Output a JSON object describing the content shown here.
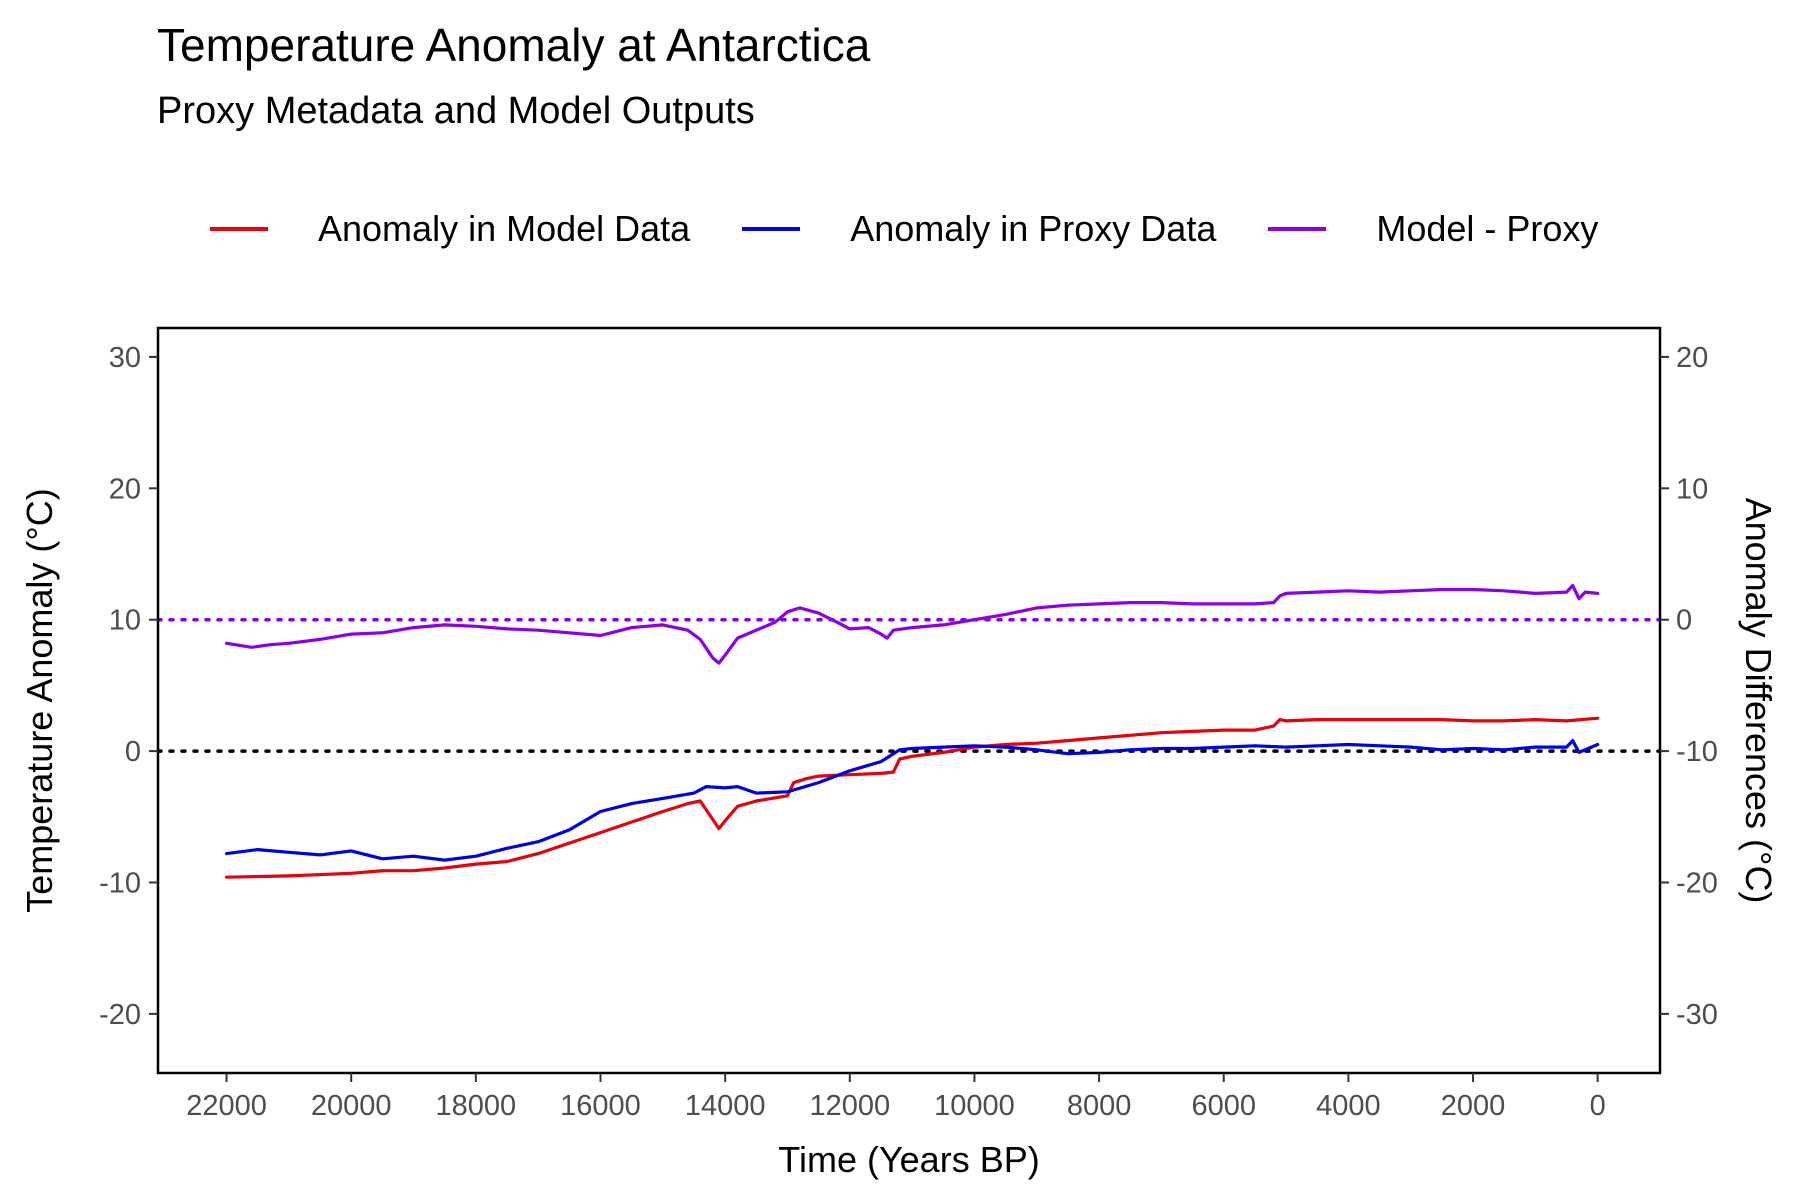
{
  "chart_data": {
    "type": "line",
    "title": "Temperature Anomaly at Antarctica",
    "subtitle": "Proxy Metadata and Model Outputs",
    "xlabel": "Time (Years BP)",
    "ylabel": "Temperature Anomaly (°C)",
    "y2label": "Anomaly Differences (°C)",
    "xlim": [
      23100,
      -1000
    ],
    "x_reversed": true,
    "ylim": [
      -24.5,
      32.2
    ],
    "y2lim": [
      -34.5,
      22.2
    ],
    "x_ticks": [
      22000,
      20000,
      18000,
      16000,
      14000,
      12000,
      10000,
      8000,
      6000,
      4000,
      2000,
      0
    ],
    "x_tick_labels": [
      "22000",
      "20000",
      "18000",
      "16000",
      "14000",
      "12000",
      "10000",
      "8000",
      "6000",
      "4000",
      "2000",
      "0"
    ],
    "y_ticks": [
      30,
      20,
      10,
      0,
      -10,
      -20
    ],
    "y_tick_labels": [
      "30",
      "20",
      "10",
      "0",
      "-10",
      "-20"
    ],
    "y2_ticks": [
      20,
      10,
      0,
      -10,
      -20,
      -30
    ],
    "y2_tick_labels": [
      "20",
      "10",
      "0",
      "-10",
      "-20",
      "-30"
    ],
    "grid": false,
    "legend_position": "top",
    "reference_lines": [
      {
        "axis": "y",
        "value": 0,
        "style": "dotted",
        "color": "#000000"
      },
      {
        "axis": "y2",
        "value": 0,
        "style": "dotted",
        "color": "#8B00E8"
      }
    ],
    "series": [
      {
        "name": "Anomaly in Model Data",
        "color": "#E8000B",
        "axis": "y",
        "x": [
          22000,
          21000,
          20000,
          19500,
          19000,
          18500,
          18000,
          17500,
          17000,
          16500,
          16000,
          15500,
          15000,
          14600,
          14400,
          14200,
          14100,
          14000,
          13800,
          13500,
          13000,
          12900,
          12700,
          12500,
          12000,
          11500,
          11300,
          11200,
          11000,
          10500,
          10000,
          9500,
          9000,
          8500,
          8000,
          7500,
          7000,
          6500,
          6000,
          5500,
          5200,
          5100,
          5000,
          4500,
          4000,
          3500,
          3000,
          2500,
          2000,
          1500,
          1000,
          500,
          0
        ],
        "y": [
          -9.6,
          -9.5,
          -9.3,
          -9.1,
          -9.1,
          -8.9,
          -8.6,
          -8.4,
          -7.8,
          -7.0,
          -6.2,
          -5.4,
          -4.6,
          -4.0,
          -3.8,
          -5.2,
          -5.9,
          -5.3,
          -4.2,
          -3.8,
          -3.4,
          -2.4,
          -2.1,
          -1.9,
          -1.8,
          -1.7,
          -1.6,
          -0.6,
          -0.4,
          -0.1,
          0.3,
          0.5,
          0.6,
          0.8,
          1.0,
          1.2,
          1.4,
          1.5,
          1.6,
          1.6,
          1.9,
          2.4,
          2.3,
          2.4,
          2.4,
          2.4,
          2.4,
          2.4,
          2.3,
          2.3,
          2.4,
          2.3,
          2.5
        ]
      },
      {
        "name": "Anomaly in Proxy Data",
        "color": "#0000E8",
        "axis": "y",
        "x": [
          22000,
          21500,
          21000,
          20500,
          20000,
          19500,
          19000,
          18500,
          18000,
          17500,
          17000,
          16500,
          16000,
          15500,
          15000,
          14500,
          14300,
          14000,
          13800,
          13500,
          13000,
          12500,
          12000,
          11500,
          11200,
          11000,
          10500,
          10000,
          9500,
          9000,
          8500,
          8000,
          7500,
          7000,
          6500,
          6000,
          5500,
          5000,
          4500,
          4000,
          3500,
          3000,
          2500,
          2000,
          1500,
          1000,
          500,
          400,
          300,
          0
        ],
        "y": [
          -7.8,
          -7.5,
          -7.7,
          -7.9,
          -7.6,
          -8.2,
          -8.0,
          -8.3,
          -8.0,
          -7.4,
          -6.9,
          -6.0,
          -4.6,
          -4.0,
          -3.6,
          -3.2,
          -2.7,
          -2.8,
          -2.7,
          -3.2,
          -3.1,
          -2.4,
          -1.5,
          -0.8,
          0.1,
          0.2,
          0.3,
          0.4,
          0.3,
          0.1,
          -0.2,
          -0.1,
          0.1,
          0.2,
          0.2,
          0.3,
          0.4,
          0.3,
          0.4,
          0.5,
          0.4,
          0.3,
          0.1,
          0.2,
          0.1,
          0.3,
          0.3,
          0.8,
          -0.1,
          0.5
        ]
      },
      {
        "name": "Model - Proxy",
        "color": "#8B00E8",
        "axis": "y2",
        "x": [
          22000,
          21600,
          21300,
          21000,
          20500,
          20000,
          19500,
          19000,
          18500,
          18000,
          17500,
          17000,
          16500,
          16000,
          15500,
          15000,
          14600,
          14400,
          14200,
          14100,
          14000,
          13800,
          13500,
          13200,
          13000,
          12800,
          12500,
          12200,
          12000,
          11700,
          11500,
          11400,
          11300,
          11000,
          10500,
          10000,
          9500,
          9000,
          8500,
          8000,
          7500,
          7000,
          6500,
          6000,
          5500,
          5200,
          5100,
          5000,
          4500,
          4000,
          3500,
          3000,
          2500,
          2000,
          1500,
          1000,
          500,
          400,
          300,
          200,
          0
        ],
        "y": [
          -1.8,
          -2.1,
          -1.9,
          -1.8,
          -1.5,
          -1.1,
          -1.0,
          -0.6,
          -0.4,
          -0.5,
          -0.7,
          -0.8,
          -1.0,
          -1.2,
          -0.6,
          -0.4,
          -0.8,
          -1.5,
          -2.9,
          -3.3,
          -2.7,
          -1.4,
          -0.8,
          -0.2,
          0.6,
          0.9,
          0.5,
          -0.2,
          -0.7,
          -0.6,
          -1.1,
          -1.4,
          -0.8,
          -0.6,
          -0.4,
          0.0,
          0.4,
          0.9,
          1.1,
          1.2,
          1.3,
          1.3,
          1.2,
          1.2,
          1.2,
          1.3,
          1.8,
          2.0,
          2.1,
          2.2,
          2.1,
          2.2,
          2.3,
          2.3,
          2.2,
          2.0,
          2.1,
          2.6,
          1.6,
          2.1,
          2.0
        ]
      }
    ]
  }
}
